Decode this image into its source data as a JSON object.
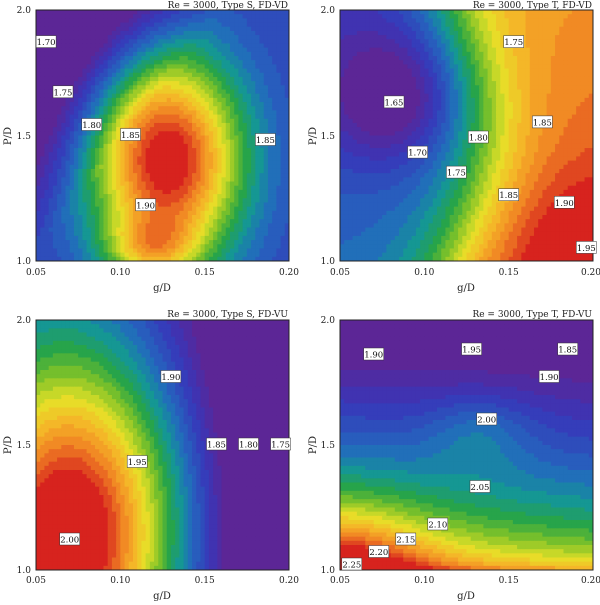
{
  "chart_data": [
    {
      "type": "heatmap",
      "title": "Re = 3000, Type S, FD-VD",
      "xlabel": "g/D",
      "ylabel": "P/D",
      "xlim": [
        0.05,
        0.2
      ],
      "ylim": [
        1.0,
        2.0
      ],
      "xticks": [
        "0.05",
        "0.10",
        "0.15",
        "0.20"
      ],
      "yticks": [
        "1.0",
        "1.5",
        "2.0"
      ],
      "color_range": [
        1.68,
        1.96
      ],
      "contour_labels": [
        {
          "text": "1.70",
          "x": 0.056,
          "y": 1.87
        },
        {
          "text": "1.75",
          "x": 0.066,
          "y": 1.67
        },
        {
          "text": "1.80",
          "x": 0.083,
          "y": 1.54
        },
        {
          "text": "1.85",
          "x": 0.106,
          "y": 1.5
        },
        {
          "text": "1.85",
          "x": 0.186,
          "y": 1.48
        },
        {
          "text": "1.90",
          "x": 0.115,
          "y": 1.22
        }
      ]
    },
    {
      "type": "heatmap",
      "title": "Re = 3000, Type T, FD-VD",
      "xlabel": "g/D",
      "ylabel": "P/D",
      "xlim": [
        0.05,
        0.2
      ],
      "ylim": [
        1.0,
        2.0
      ],
      "xticks": [
        "0.05",
        "0.10",
        "0.15",
        "0.20"
      ],
      "yticks": [
        "1.0",
        "1.5",
        "2.0"
      ],
      "color_range": [
        1.62,
        1.97
      ],
      "contour_labels": [
        {
          "text": "1.75",
          "x": 0.153,
          "y": 1.87
        },
        {
          "text": "1.65",
          "x": 0.082,
          "y": 1.63
        },
        {
          "text": "1.70",
          "x": 0.096,
          "y": 1.43
        },
        {
          "text": "1.80",
          "x": 0.132,
          "y": 1.49
        },
        {
          "text": "1.75",
          "x": 0.119,
          "y": 1.35
        },
        {
          "text": "1.85",
          "x": 0.17,
          "y": 1.55
        },
        {
          "text": "1.85",
          "x": 0.15,
          "y": 1.26
        },
        {
          "text": "1.90",
          "x": 0.183,
          "y": 1.23
        },
        {
          "text": "1.95",
          "x": 0.196,
          "y": 1.05
        }
      ]
    },
    {
      "type": "heatmap",
      "title": "Re = 3000, Type S, FD-VU",
      "xlabel": "g/D",
      "ylabel": "P/D",
      "xlim": [
        0.05,
        0.2
      ],
      "ylim": [
        1.0,
        2.0
      ],
      "xticks": [
        "0.05",
        "0.10",
        "0.15",
        "0.20"
      ],
      "yticks": [
        "1.0",
        "1.5",
        "2.0"
      ],
      "color_range": [
        1.72,
        2.02
      ],
      "contour_labels": [
        {
          "text": "1.90",
          "x": 0.13,
          "y": 1.77
        },
        {
          "text": "1.95",
          "x": 0.11,
          "y": 1.43
        },
        {
          "text": "1.85",
          "x": 0.157,
          "y": 1.5
        },
        {
          "text": "1.80",
          "x": 0.176,
          "y": 1.5
        },
        {
          "text": "1.75",
          "x": 0.195,
          "y": 1.5
        },
        {
          "text": "2.00",
          "x": 0.07,
          "y": 1.12
        }
      ]
    },
    {
      "type": "heatmap",
      "title": "Re = 3000, Type T, FD-VU",
      "xlabel": "g/D",
      "ylabel": "P/D",
      "xlim": [
        0.05,
        0.2
      ],
      "ylim": [
        1.0,
        2.0
      ],
      "xticks": [
        "0.05",
        "0.10",
        "0.15",
        "0.20"
      ],
      "yticks": [
        "1.0",
        "1.5",
        "2.0"
      ],
      "color_range": [
        1.82,
        2.3
      ],
      "contour_labels": [
        {
          "text": "1.90",
          "x": 0.07,
          "y": 1.86
        },
        {
          "text": "1.95",
          "x": 0.128,
          "y": 1.88
        },
        {
          "text": "1.85",
          "x": 0.185,
          "y": 1.88
        },
        {
          "text": "1.90",
          "x": 0.174,
          "y": 1.77
        },
        {
          "text": "2.00",
          "x": 0.137,
          "y": 1.6
        },
        {
          "text": "2.05",
          "x": 0.133,
          "y": 1.33
        },
        {
          "text": "2.10",
          "x": 0.108,
          "y": 1.18
        },
        {
          "text": "2.15",
          "x": 0.089,
          "y": 1.12
        },
        {
          "text": "2.20",
          "x": 0.073,
          "y": 1.07
        },
        {
          "text": "2.25",
          "x": 0.057,
          "y": 1.02
        }
      ]
    }
  ]
}
